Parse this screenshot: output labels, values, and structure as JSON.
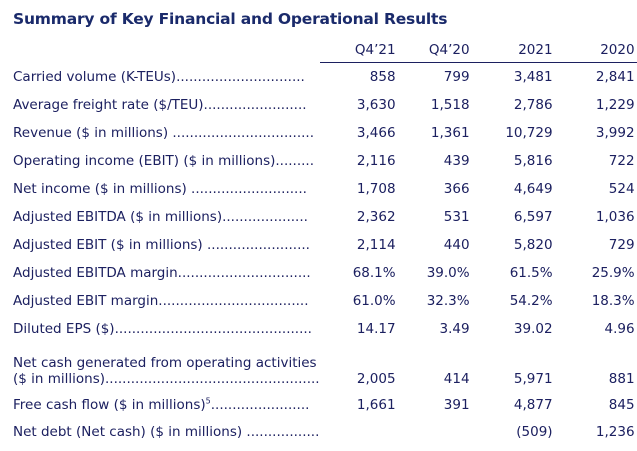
{
  "title": "Summary of Key Financial and Operational Results",
  "columns": [
    "Q4’21",
    "Q4’20",
    "2021",
    "2020"
  ],
  "rows": [
    {
      "label": "Carried volume (K-TEUs)..............................",
      "values": [
        "858",
        "799",
        "3,481",
        "2,841"
      ]
    },
    {
      "label": "Average freight rate ($/TEU)........................",
      "values": [
        "3,630",
        "1,518",
        "2,786",
        "1,229"
      ]
    },
    {
      "label": "Revenue ($ in millions) .................................",
      "values": [
        "3,466",
        "1,361",
        "10,729",
        "3,992"
      ]
    },
    {
      "label": "Operating income (EBIT) ($ in millions).........",
      "values": [
        "2,116",
        "439",
        "5,816",
        "722"
      ]
    },
    {
      "label": "Net income ($ in millions) ...........................",
      "values": [
        "1,708",
        "366",
        "4,649",
        "524"
      ]
    },
    {
      "label": "Adjusted EBITDA ($ in millions)....................",
      "values": [
        "2,362",
        "531",
        "6,597",
        "1,036"
      ]
    },
    {
      "label": "Adjusted EBIT ($ in millions) ........................",
      "values": [
        "2,114",
        "440",
        "5,820",
        "729"
      ]
    },
    {
      "label": "Adjusted EBITDA margin...............................",
      "values": [
        "68.1%",
        "39.0%",
        "61.5%",
        "25.9%"
      ]
    },
    {
      "label": "Adjusted EBIT margin...................................",
      "values": [
        "61.0%",
        "32.3%",
        "54.2%",
        "18.3%"
      ]
    },
    {
      "label": "Diluted EPS ($)..............................................",
      "values": [
        "14.17",
        "3.49",
        "39.02",
        "4.96"
      ]
    }
  ],
  "two_line_row": {
    "label_line1": "Net cash generated from operating activities",
    "label_line2": "($ in millions)..................................................",
    "values": [
      "2,005",
      "414",
      "5,971",
      "881"
    ]
  },
  "fcf_row": {
    "label": "Free cash flow ($ in millions)",
    "footnote": "5",
    "dots": ".......................",
    "values": [
      "1,661",
      "391",
      "4,877",
      "845"
    ]
  },
  "net_debt_row": {
    "label": "Net debt (Net cash) ($ in millions) .................",
    "values": [
      "",
      "",
      "(509)",
      "1,236"
    ]
  }
}
